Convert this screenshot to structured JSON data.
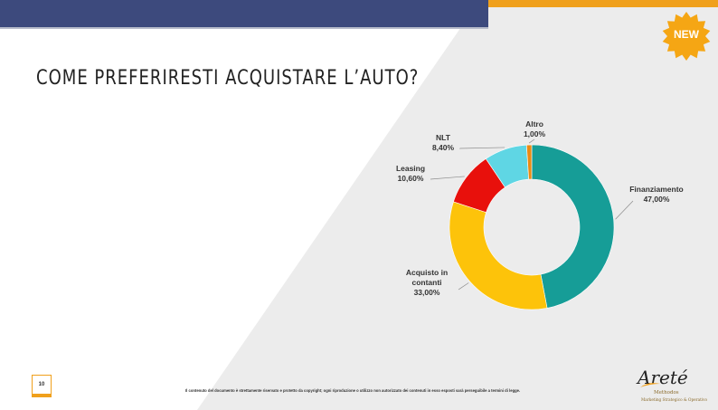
{
  "slide": {
    "title": "COME PREFERIRESTI ACQUISTARE L’AUTO?",
    "badge": "NEW",
    "page_number": "10",
    "footer_note": "Il contenuto del documento è strettamente riservato e protetto da copyright; ogni riproduzione o utilizzo non autorizzato dei contenuti in esso esposti sarà perseguibile a termini di legge.",
    "colors": {
      "navy": "#3d4a7d",
      "orange": "#f0a01c",
      "panel": "#ececec"
    }
  },
  "logo": {
    "name": "Areté",
    "line1": "Methodos",
    "line2": "Marketing Strategico & Operativo"
  },
  "chart_data": {
    "type": "pie",
    "title": "",
    "unit": "%",
    "slices": [
      {
        "label": "Finanziamento",
        "value": 47.0,
        "display": "47,00%",
        "color": "#169d97"
      },
      {
        "label": "Acquisto in contanti",
        "value": 33.0,
        "display": "33,00%",
        "color": "#fdc30a"
      },
      {
        "label": "Leasing",
        "value": 10.6,
        "display": "10,60%",
        "color": "#e8100c"
      },
      {
        "label": "NLT",
        "value": 8.4,
        "display": "8,40%",
        "color": "#5fd6e4"
      },
      {
        "label": "Altro",
        "value": 1.0,
        "display": "1,00%",
        "color": "#ea8a14"
      }
    ]
  }
}
